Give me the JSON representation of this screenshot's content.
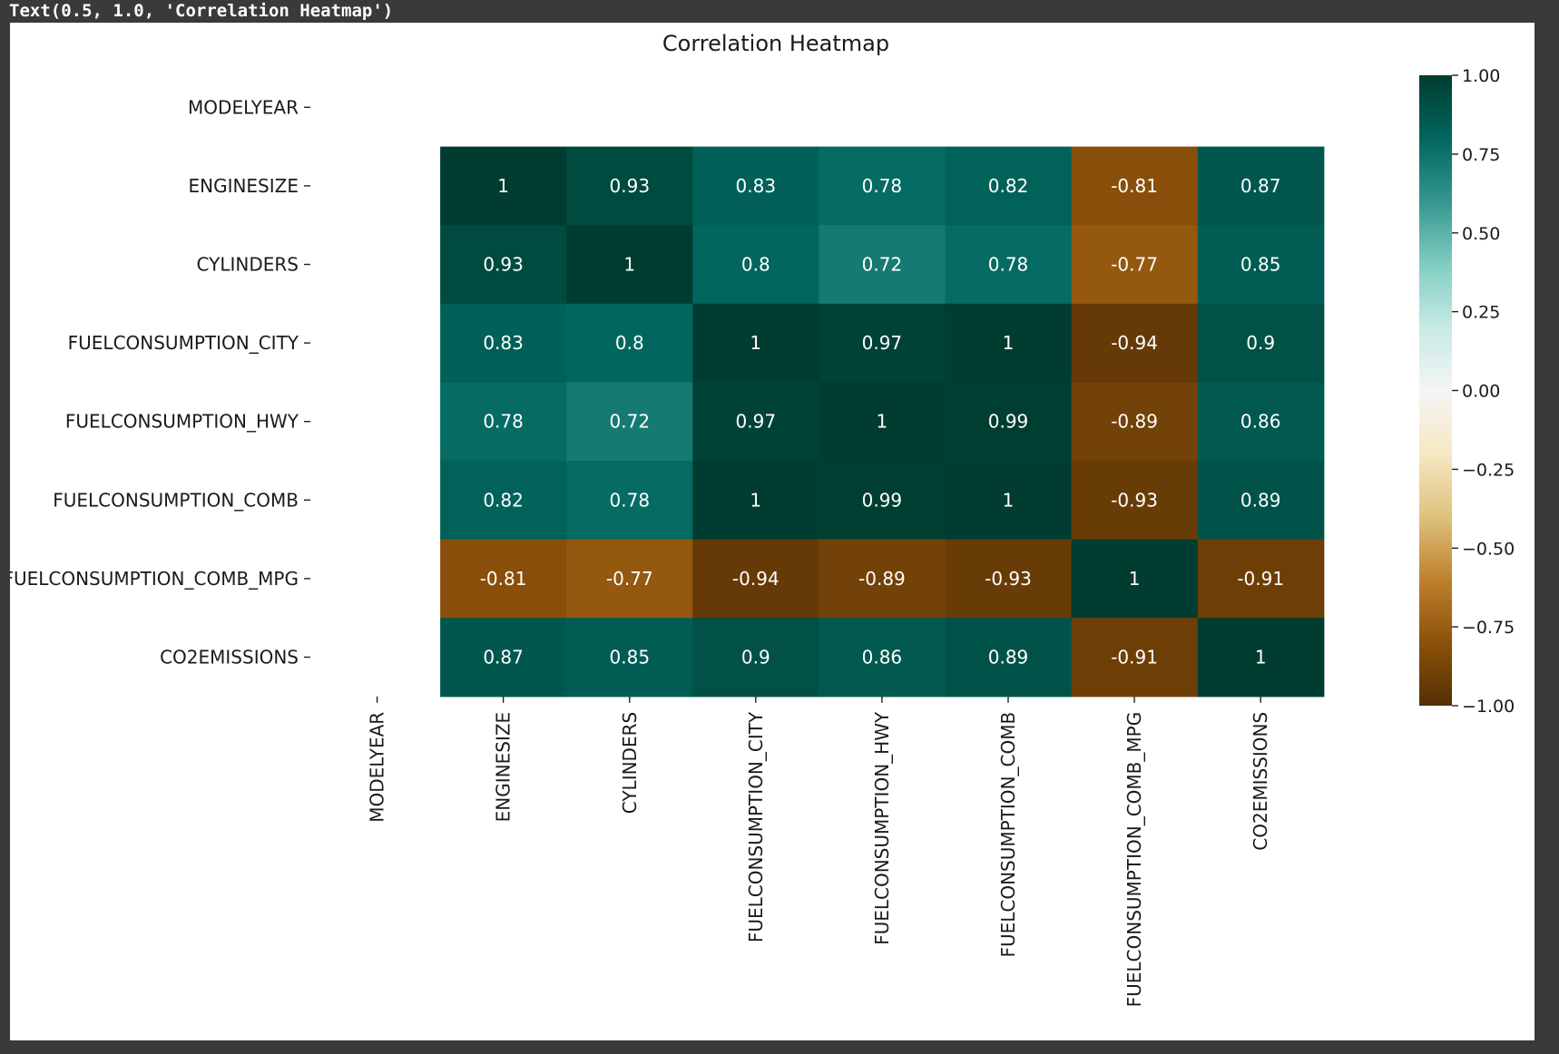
{
  "output_text": "Text(0.5, 1.0, 'Correlation Heatmap')",
  "chart_data": {
    "type": "heatmap",
    "title": "Correlation Heatmap",
    "xlabel": "",
    "ylabel": "",
    "row_labels": [
      "MODELYEAR",
      "ENGINESIZE",
      "CYLINDERS",
      "FUELCONSUMPTION_CITY",
      "FUELCONSUMPTION_HWY",
      "FUELCONSUMPTION_COMB",
      "FUELCONSUMPTION_COMB_MPG",
      "CO2EMISSIONS"
    ],
    "col_labels": [
      "MODELYEAR",
      "ENGINESIZE",
      "CYLINDERS",
      "FUELCONSUMPTION_CITY",
      "FUELCONSUMPTION_HWY",
      "FUELCONSUMPTION_COMB",
      "FUELCONSUMPTION_COMB_MPG",
      "CO2EMISSIONS"
    ],
    "values": [
      [
        null,
        null,
        null,
        null,
        null,
        null,
        null,
        null
      ],
      [
        null,
        1,
        0.93,
        0.83,
        0.78,
        0.82,
        -0.81,
        0.87
      ],
      [
        null,
        0.93,
        1,
        0.8,
        0.72,
        0.78,
        -0.77,
        0.85
      ],
      [
        null,
        0.83,
        0.8,
        1,
        0.97,
        1,
        -0.94,
        0.9
      ],
      [
        null,
        0.78,
        0.72,
        0.97,
        1,
        0.99,
        -0.89,
        0.86
      ],
      [
        null,
        0.82,
        0.78,
        1,
        0.99,
        1,
        -0.93,
        0.89
      ],
      [
        null,
        -0.81,
        -0.77,
        -0.94,
        -0.89,
        -0.93,
        1,
        -0.91
      ],
      [
        null,
        0.87,
        0.85,
        0.9,
        0.86,
        0.89,
        -0.91,
        1
      ]
    ],
    "annotations": true,
    "colormap": "BrBG",
    "vmin": -1,
    "vmax": 1,
    "colorbar": {
      "ticks": [
        1.0,
        0.75,
        0.5,
        0.25,
        0.0,
        -0.25,
        -0.5,
        -0.75,
        -1.0
      ],
      "tick_labels": [
        "1.00",
        "0.75",
        "0.50",
        "0.25",
        "0.00",
        "−0.25",
        "−0.50",
        "−0.75",
        "−1.00"
      ]
    },
    "colormap_stops": [
      "#543005",
      "#8c510a",
      "#bf812d",
      "#dfc27d",
      "#f6e8c3",
      "#f5f5f5",
      "#c7eae5",
      "#80cdc1",
      "#35978f",
      "#01665e",
      "#003c30"
    ],
    "grid": false
  }
}
